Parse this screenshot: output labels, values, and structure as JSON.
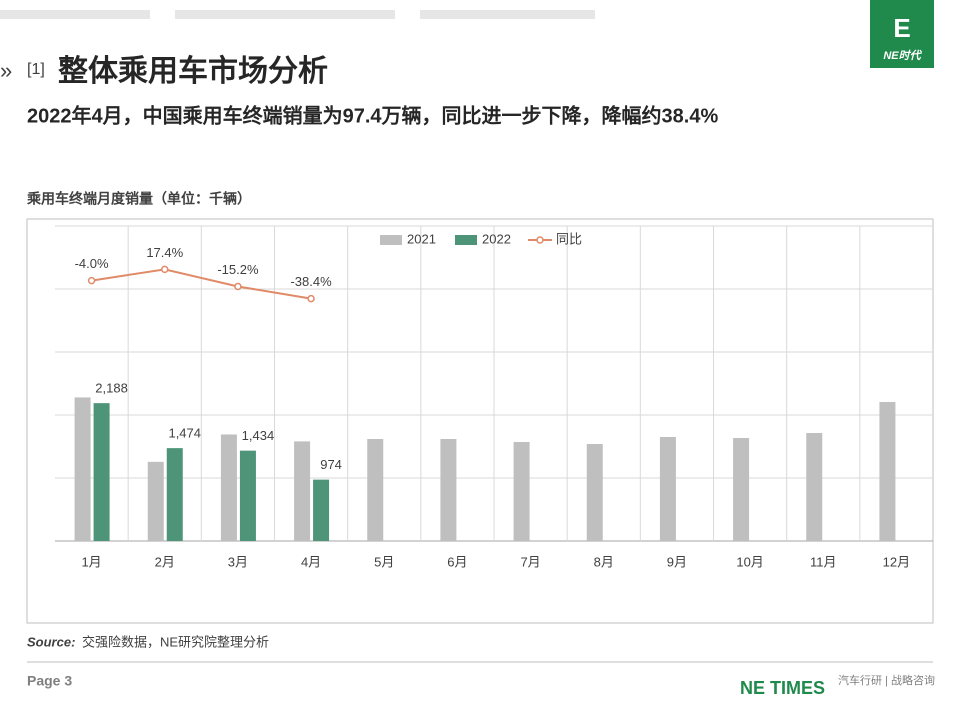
{
  "header": {
    "section_number": "[1]",
    "title": "整体乘用车市场分析",
    "subtitle": "2022年4月，中国乘用车终端销量为97.4万辆，同比进一步下降，降幅约38.4%"
  },
  "logo": {
    "text": "NE时代"
  },
  "chart_data": {
    "type": "bar",
    "title": "乘用车终端月度销量（单位：千辆）",
    "categories": [
      "1月",
      "2月",
      "3月",
      "4月",
      "5月",
      "6月",
      "7月",
      "8月",
      "9月",
      "10月",
      "11月",
      "12月"
    ],
    "series": [
      {
        "name": "2021",
        "color": "#bfbfbf",
        "values": [
          2279,
          1256,
          1691,
          1581,
          1619,
          1619,
          1571,
          1540,
          1651,
          1635,
          1714,
          2206
        ]
      },
      {
        "name": "2022",
        "color": "#4e9478",
        "values": [
          2188,
          1474,
          1434,
          974,
          null,
          null,
          null,
          null,
          null,
          null,
          null,
          null
        ],
        "value_labels": [
          "2,188",
          "1,474",
          "1,434",
          "974",
          null,
          null,
          null,
          null,
          null,
          null,
          null,
          null
        ]
      },
      {
        "name": "同比",
        "type": "line",
        "axis": "y2",
        "color": "#e08a68",
        "values": [
          -4.0,
          17.4,
          -15.2,
          -38.4,
          null,
          null,
          null,
          null,
          null,
          null,
          null,
          null
        ],
        "value_labels": [
          "-4.0%",
          "17.4%",
          "-15.2%",
          "-38.4%",
          null,
          null,
          null,
          null,
          null,
          null,
          null,
          null
        ]
      }
    ],
    "ylim": [
      0,
      5000
    ],
    "yticks": [
      0,
      1000,
      2000,
      3000,
      4000,
      5000
    ],
    "y2lim": [
      -500,
      100
    ],
    "show_ytick_labels": false,
    "grid": true,
    "legend": "top"
  },
  "source": {
    "label": "Source:",
    "text": "交强险数据，NE研究院整理分析"
  },
  "footer": {
    "page": "Page 3",
    "brand": "NE TIMES",
    "tagline": "汽车行研 | 战略咨询"
  }
}
